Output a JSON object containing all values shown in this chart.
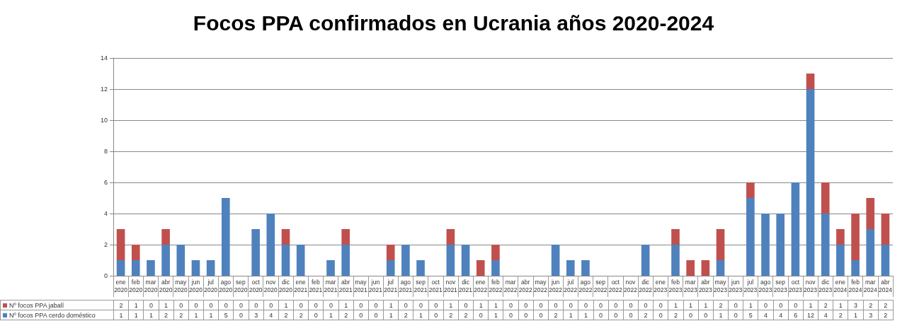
{
  "chart_data": {
    "type": "bar",
    "title": "Focos PPA confirmados en Ucrania años 2020-2024",
    "categories": [
      "ene 2020",
      "feb 2020",
      "mar 2020",
      "abr 2020",
      "may 2020",
      "jun 2020",
      "jul 2020",
      "ago 2020",
      "sep 2020",
      "oct 2020",
      "nov 2020",
      "dic 2020",
      "ene 2021",
      "feb 2021",
      "mar 2021",
      "abr 2021",
      "may 2021",
      "jun 2021",
      "jul 2021",
      "ago 2021",
      "sep 2021",
      "oct 2021",
      "nov 2021",
      "dic 2021",
      "ene 2022",
      "feb 2022",
      "mar 2022",
      "abr 2022",
      "may 2022",
      "jun 2022",
      "jul 2022",
      "ago 2022",
      "sep 2022",
      "oct 2022",
      "nov 2022",
      "dic 2022",
      "ene 2023",
      "feb 2023",
      "mar 2023",
      "abr 2023",
      "may 2023",
      "jun 2023",
      "jul 2023",
      "ago 2023",
      "sep 2023",
      "oct 2023",
      "nov 2023",
      "dic 2023",
      "ene 2024",
      "feb 2024",
      "mar 2024",
      "abr 2024"
    ],
    "series": [
      {
        "name": "Nº focos PPA cerdo doméstico",
        "color": "#4f81bd",
        "values": [
          1,
          1,
          1,
          2,
          2,
          1,
          1,
          5,
          0,
          3,
          4,
          2,
          2,
          0,
          1,
          2,
          0,
          0,
          1,
          2,
          1,
          0,
          2,
          2,
          0,
          1,
          0,
          0,
          0,
          2,
          1,
          1,
          0,
          0,
          0,
          2,
          0,
          2,
          0,
          0,
          1,
          0,
          5,
          4,
          4,
          6,
          12,
          4,
          2,
          1,
          3,
          2
        ]
      },
      {
        "name": "Nº focos PPA jabalí",
        "color": "#c0504d",
        "values": [
          2,
          1,
          0,
          1,
          0,
          0,
          0,
          0,
          0,
          0,
          0,
          1,
          0,
          0,
          0,
          1,
          0,
          0,
          1,
          0,
          0,
          0,
          1,
          0,
          1,
          1,
          0,
          0,
          0,
          0,
          0,
          0,
          0,
          0,
          0,
          0,
          0,
          1,
          1,
          1,
          2,
          0,
          1,
          0,
          0,
          0,
          1,
          2,
          1,
          3,
          2,
          2
        ]
      }
    ],
    "stacked": true,
    "ylim": [
      0,
      14
    ],
    "yticks": [
      0,
      2,
      4,
      6,
      8,
      10,
      12,
      14
    ],
    "grid": "y",
    "legend": "bottom",
    "data_labels": true
  }
}
